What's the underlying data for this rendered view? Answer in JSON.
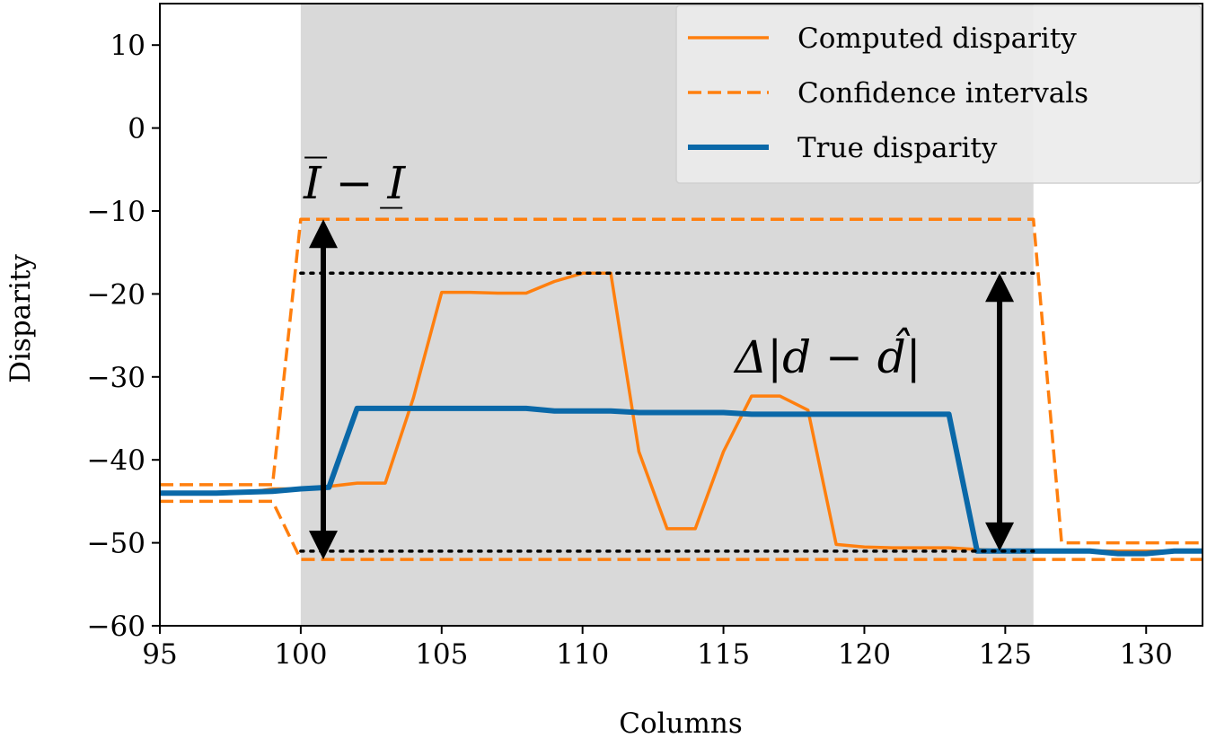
{
  "chart_data": {
    "type": "line",
    "xlabel": "Columns",
    "ylabel": "Disparity",
    "xlim": [
      95,
      132
    ],
    "ylim": [
      -60,
      15
    ],
    "xticks": [
      95,
      100,
      105,
      110,
      115,
      120,
      125,
      130
    ],
    "yticks": [
      10,
      0,
      -10,
      -20,
      -30,
      -40,
      -50,
      -60
    ],
    "ytick_labels": [
      "10",
      "0",
      "−10",
      "−20",
      "−30",
      "−40",
      "−50",
      "−60"
    ],
    "grid": false,
    "legend_position": "top-right",
    "shaded_region": {
      "x0": 100,
      "x1": 126,
      "color": "#d9d9d9"
    },
    "series": [
      {
        "name": "Computed disparity",
        "style": "solid",
        "color": "#ff7f0e",
        "x": [
          95,
          96,
          97,
          98,
          99,
          100,
          101,
          102,
          103,
          104,
          105,
          106,
          107,
          108,
          109,
          110,
          111,
          112,
          113,
          114,
          115,
          116,
          117,
          118,
          119,
          120,
          121,
          122,
          123,
          124,
          125,
          126,
          127,
          128,
          129,
          130,
          131,
          132
        ],
        "y": [
          -44,
          -44,
          -44,
          -44,
          -43.5,
          -43.5,
          -43.2,
          -42.8,
          -42.8,
          -32.5,
          -19.8,
          -19.8,
          -19.9,
          -19.9,
          -18.5,
          -17.5,
          -17.5,
          -39,
          -48.3,
          -48.3,
          -39,
          -32.3,
          -32.3,
          -34,
          -50.2,
          -50.5,
          -50.6,
          -50.6,
          -50.6,
          -50.8,
          -51,
          -51,
          -51,
          -51,
          -51,
          -51,
          -51,
          -51
        ]
      },
      {
        "name": "Confidence intervals",
        "style": "dashed",
        "color": "#ff7f0e",
        "x": [
          95,
          99,
          100,
          126,
          127,
          132
        ],
        "y": [
          -43,
          -43,
          -11,
          -11,
          -50,
          -50
        ]
      },
      {
        "name": "",
        "style": "dashed",
        "color": "#ff7f0e",
        "x": [
          95,
          99,
          100,
          126,
          127,
          132
        ],
        "y": [
          -45,
          -45,
          -52,
          -52,
          -52,
          -52
        ]
      },
      {
        "name": "True disparity",
        "style": "solid-thick",
        "color": "#0a68a8",
        "x": [
          95,
          97,
          99,
          100,
          101,
          102,
          103,
          108,
          109,
          111,
          112,
          115,
          116,
          117,
          123,
          124,
          125,
          126,
          128,
          129,
          130,
          131,
          132
        ],
        "y": [
          -44,
          -44,
          -43.8,
          -43.5,
          -43.3,
          -33.8,
          -33.8,
          -33.8,
          -34.1,
          -34.1,
          -34.3,
          -34.3,
          -34.5,
          -34.5,
          -34.5,
          -51,
          -51,
          -51,
          -51,
          -51.3,
          -51.3,
          -51,
          -51
        ]
      }
    ],
    "reference_lines": [
      {
        "y": -17.5,
        "x0": 100,
        "x1": 126,
        "style": "dotted",
        "color": "#000000"
      },
      {
        "y": -51,
        "x0": 100,
        "x1": 126,
        "style": "dotted",
        "color": "#000000"
      }
    ],
    "annotations": [
      {
        "text": "I̅ − I̲",
        "x": 100.1,
        "y": -8.5,
        "arrow": {
          "x": 100.8,
          "y_top": -11,
          "y_bottom": -52
        }
      },
      {
        "text": "Δ|d − d̂|",
        "x": 115.4,
        "y": -29.5,
        "arrow": {
          "x": 124.8,
          "y_top": -17.5,
          "y_bottom": -51
        }
      }
    ]
  }
}
